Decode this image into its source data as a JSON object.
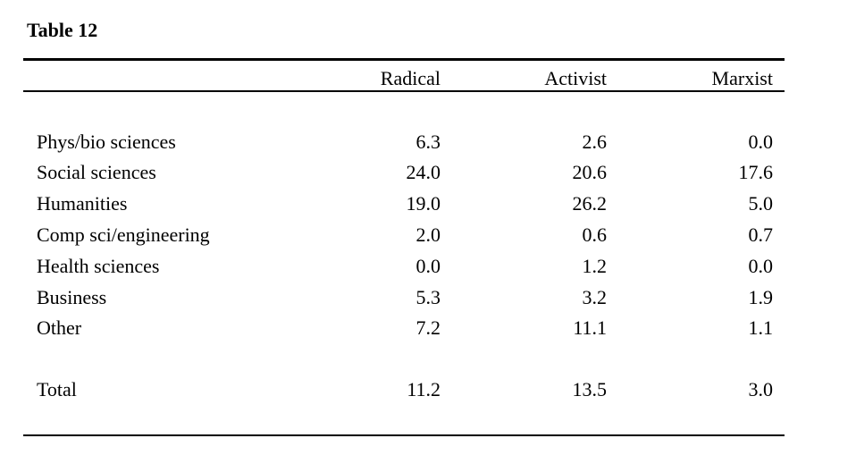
{
  "title": "Table 12",
  "columns": [
    "Radical",
    "Activist",
    "Marxist"
  ],
  "rows": [
    {
      "label": "Phys/bio sciences",
      "values": [
        "6.3",
        "2.6",
        "0.0"
      ]
    },
    {
      "label": "Social sciences",
      "values": [
        "24.0",
        "20.6",
        "17.6"
      ]
    },
    {
      "label": "Humanities",
      "values": [
        "19.0",
        "26.2",
        "5.0"
      ]
    },
    {
      "label": "Comp sci/engineering",
      "values": [
        "2.0",
        "0.6",
        "0.7"
      ]
    },
    {
      "label": "Health sciences",
      "values": [
        "0.0",
        "1.2",
        "0.0"
      ]
    },
    {
      "label": "Business",
      "values": [
        "5.3",
        "3.2",
        "1.9"
      ]
    },
    {
      "label": "Other",
      "values": [
        "7.2",
        "11.1",
        "1.1"
      ]
    }
  ],
  "total": {
    "label": "Total",
    "values": [
      "11.2",
      "13.5",
      "3.0"
    ]
  }
}
